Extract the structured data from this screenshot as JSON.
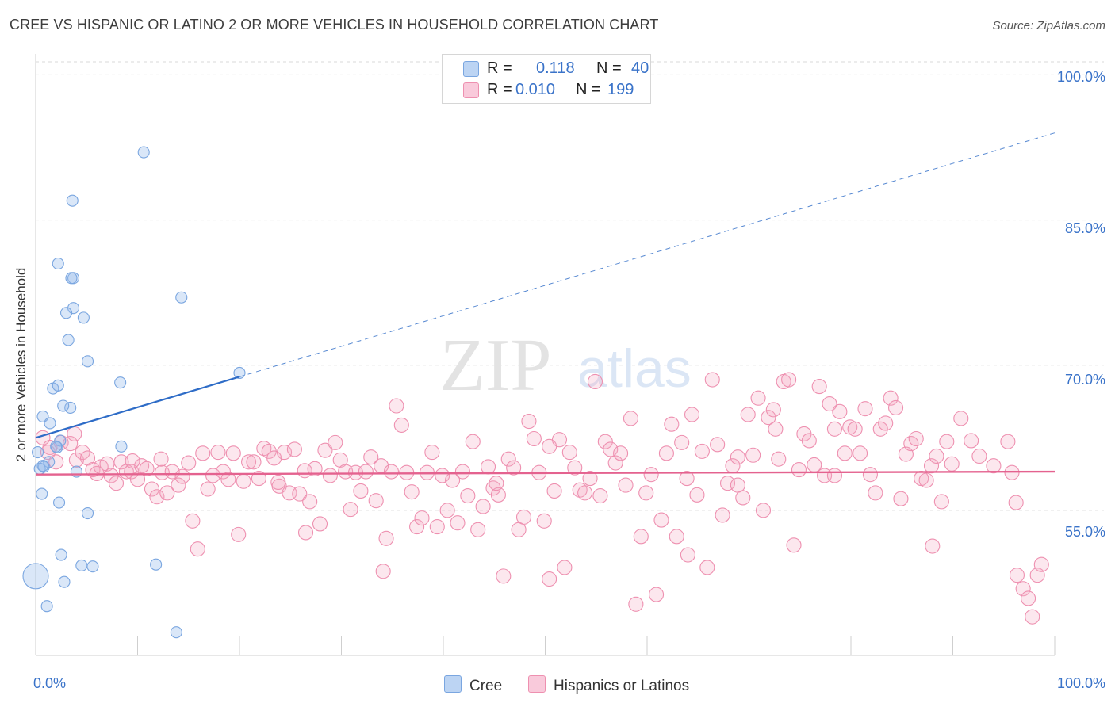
{
  "title": "CREE VS HISPANIC OR LATINO 2 OR MORE VEHICLES IN HOUSEHOLD CORRELATION CHART",
  "source": "Source: ZipAtlas.com",
  "watermark": {
    "zip": "ZIP",
    "atlas": "atlas"
  },
  "legend": {
    "series": [
      {
        "r_label": "R =",
        "r_value": "0.118",
        "n_label": "N =",
        "n_value": "40",
        "color": "#a9c8f0",
        "stroke": "#7aa6e0"
      },
      {
        "r_label": "R =",
        "r_value": "0.010",
        "n_label": "N =",
        "n_value": "199",
        "color": "#f7bcd0",
        "stroke": "#ee90b0"
      }
    ]
  },
  "bottom_legend": {
    "cree": "Cree",
    "hisp": "Hispanics or Latinos"
  },
  "colors": {
    "cree_fill": "rgba(150,185,235,0.35)",
    "cree_stroke": "#7aa6e0",
    "cree_line": "#2e6cc7",
    "hisp_fill": "rgba(245,170,195,0.28)",
    "hisp_stroke": "#ee90b0",
    "hisp_line": "#e4628f",
    "grid": "#d8d8d8",
    "tick_text": "#3a73c9"
  },
  "chart_data": {
    "type": "scatter",
    "title": "CREE VS HISPANIC OR LATINO 2 OR MORE VEHICLES IN HOUSEHOLD CORRELATION CHART",
    "xlabel": "",
    "ylabel": "2 or more Vehicles in Household",
    "xlim": [
      0,
      100
    ],
    "ylim": [
      40,
      102
    ],
    "x_tick_labels": [
      "0.0%",
      "100.0%"
    ],
    "y_ticks": [
      55,
      70,
      85,
      100
    ],
    "y_tick_labels": [
      "55.0%",
      "70.0%",
      "85.0%",
      "100.0%"
    ],
    "grid": true,
    "legend_position": "top-center",
    "series": [
      {
        "name": "Cree",
        "points": [
          [
            10.6,
            92.0
          ],
          [
            3.6,
            87.0
          ],
          [
            2.2,
            80.5
          ],
          [
            3.7,
            79.0
          ],
          [
            3.5,
            79.0
          ],
          [
            14.3,
            77.0
          ],
          [
            3.7,
            75.9
          ],
          [
            3.0,
            75.4
          ],
          [
            4.7,
            74.9
          ],
          [
            3.2,
            72.6
          ],
          [
            5.1,
            70.4
          ],
          [
            8.3,
            68.2
          ],
          [
            1.7,
            67.6
          ],
          [
            2.2,
            67.9
          ],
          [
            3.4,
            65.6
          ],
          [
            2.7,
            65.8
          ],
          [
            20.0,
            69.2
          ],
          [
            0.7,
            64.7
          ],
          [
            1.4,
            64.0
          ],
          [
            2.4,
            62.2
          ],
          [
            2.1,
            61.5
          ],
          [
            0.2,
            61.0
          ],
          [
            2.0,
            61.6
          ],
          [
            1.3,
            60.0
          ],
          [
            0.8,
            59.5
          ],
          [
            0.4,
            59.3
          ],
          [
            4.0,
            59.0
          ],
          [
            8.4,
            61.6
          ],
          [
            0.6,
            56.7
          ],
          [
            2.3,
            55.8
          ],
          [
            5.1,
            54.7
          ],
          [
            2.5,
            50.4
          ],
          [
            4.5,
            49.3
          ],
          [
            5.6,
            49.2
          ],
          [
            11.8,
            49.4
          ],
          [
            0.0,
            48.2
          ],
          [
            2.8,
            47.6
          ],
          [
            1.1,
            45.1
          ],
          [
            13.8,
            42.4
          ],
          [
            0.7,
            59.6
          ]
        ],
        "marker_size": [
          7,
          7,
          7,
          7,
          7,
          7,
          7,
          7,
          7,
          7,
          7,
          7,
          7,
          7,
          7,
          7,
          7,
          7,
          7,
          7,
          7,
          7,
          7,
          7,
          7,
          7,
          7,
          7,
          7,
          7,
          7,
          7,
          7,
          7,
          7,
          16,
          7,
          7,
          7,
          7
        ]
      },
      {
        "name": "Hispanics or Latinos",
        "points": [
          [
            0.7,
            62.5
          ],
          [
            1.4,
            61.5
          ],
          [
            2.5,
            62.0
          ],
          [
            3.4,
            61.9
          ],
          [
            4.0,
            60.2
          ],
          [
            4.6,
            61.0
          ],
          [
            5.1,
            60.4
          ],
          [
            5.6,
            59.2
          ],
          [
            6.0,
            58.8
          ],
          [
            6.4,
            59.5
          ],
          [
            7.0,
            59.8
          ],
          [
            7.4,
            58.6
          ],
          [
            7.9,
            57.8
          ],
          [
            8.4,
            60.0
          ],
          [
            8.9,
            59.0
          ],
          [
            9.4,
            59.0
          ],
          [
            10.0,
            58.2
          ],
          [
            10.4,
            59.6
          ],
          [
            10.9,
            59.3
          ],
          [
            11.4,
            57.2
          ],
          [
            11.9,
            56.4
          ],
          [
            12.4,
            58.9
          ],
          [
            12.9,
            56.8
          ],
          [
            13.4,
            59.0
          ],
          [
            14.0,
            57.6
          ],
          [
            14.4,
            58.5
          ],
          [
            15.0,
            59.9
          ],
          [
            15.4,
            53.9
          ],
          [
            15.9,
            51.0
          ],
          [
            16.4,
            60.9
          ],
          [
            16.9,
            57.2
          ],
          [
            17.4,
            58.6
          ],
          [
            17.9,
            61.0
          ],
          [
            18.4,
            59.0
          ],
          [
            18.9,
            58.2
          ],
          [
            19.4,
            60.9
          ],
          [
            19.9,
            52.5
          ],
          [
            20.4,
            58.0
          ],
          [
            20.9,
            60.0
          ],
          [
            21.4,
            60.0
          ],
          [
            21.9,
            58.3
          ],
          [
            22.4,
            61.4
          ],
          [
            22.9,
            61.1
          ],
          [
            23.4,
            60.4
          ],
          [
            23.9,
            57.5
          ],
          [
            24.4,
            61.0
          ],
          [
            24.9,
            56.8
          ],
          [
            25.4,
            61.3
          ],
          [
            25.9,
            56.7
          ],
          [
            26.4,
            59.1
          ],
          [
            26.9,
            55.9
          ],
          [
            27.4,
            59.3
          ],
          [
            27.9,
            53.6
          ],
          [
            28.4,
            61.2
          ],
          [
            28.9,
            58.6
          ],
          [
            29.4,
            62.0
          ],
          [
            29.9,
            60.2
          ],
          [
            30.4,
            59.0
          ],
          [
            30.9,
            55.1
          ],
          [
            31.4,
            58.9
          ],
          [
            31.9,
            57.0
          ],
          [
            32.4,
            59.0
          ],
          [
            32.9,
            60.5
          ],
          [
            33.4,
            56.0
          ],
          [
            33.9,
            59.6
          ],
          [
            34.4,
            52.1
          ],
          [
            34.9,
            59.0
          ],
          [
            35.4,
            65.8
          ],
          [
            35.9,
            63.8
          ],
          [
            36.4,
            58.9
          ],
          [
            36.9,
            56.9
          ],
          [
            37.4,
            53.3
          ],
          [
            37.9,
            54.2
          ],
          [
            38.4,
            58.9
          ],
          [
            38.9,
            61.0
          ],
          [
            39.4,
            53.3
          ],
          [
            39.9,
            58.6
          ],
          [
            40.4,
            55.0
          ],
          [
            40.9,
            58.1
          ],
          [
            41.4,
            53.7
          ],
          [
            41.9,
            59.0
          ],
          [
            42.4,
            56.5
          ],
          [
            42.9,
            62.1
          ],
          [
            43.4,
            53.0
          ],
          [
            43.9,
            55.4
          ],
          [
            44.4,
            59.5
          ],
          [
            44.9,
            57.3
          ],
          [
            45.4,
            56.6
          ],
          [
            45.9,
            48.2
          ],
          [
            46.4,
            60.3
          ],
          [
            46.9,
            59.4
          ],
          [
            47.4,
            53.0
          ],
          [
            47.9,
            54.3
          ],
          [
            48.4,
            64.2
          ],
          [
            48.9,
            62.4
          ],
          [
            49.4,
            58.9
          ],
          [
            49.9,
            53.9
          ],
          [
            50.4,
            61.6
          ],
          [
            50.9,
            57.0
          ],
          [
            51.4,
            62.3
          ],
          [
            51.9,
            49.1
          ],
          [
            52.4,
            61.0
          ],
          [
            52.9,
            59.4
          ],
          [
            53.4,
            57.1
          ],
          [
            53.9,
            56.8
          ],
          [
            54.4,
            58.3
          ],
          [
            54.9,
            68.3
          ],
          [
            55.4,
            56.5
          ],
          [
            55.9,
            62.1
          ],
          [
            56.4,
            61.3
          ],
          [
            56.9,
            59.9
          ],
          [
            57.4,
            60.9
          ],
          [
            57.9,
            57.6
          ],
          [
            58.4,
            64.5
          ],
          [
            58.9,
            45.3
          ],
          [
            59.4,
            52.3
          ],
          [
            59.9,
            56.8
          ],
          [
            60.4,
            58.7
          ],
          [
            60.9,
            46.3
          ],
          [
            61.4,
            54.0
          ],
          [
            61.9,
            60.9
          ],
          [
            62.4,
            63.9
          ],
          [
            62.9,
            52.3
          ],
          [
            63.4,
            62.0
          ],
          [
            63.9,
            58.3
          ],
          [
            64.4,
            64.9
          ],
          [
            64.9,
            56.6
          ],
          [
            65.4,
            61.1
          ],
          [
            65.9,
            49.1
          ],
          [
            66.4,
            68.5
          ],
          [
            66.9,
            61.8
          ],
          [
            67.4,
            54.5
          ],
          [
            67.9,
            57.8
          ],
          [
            68.4,
            59.6
          ],
          [
            68.9,
            57.6
          ],
          [
            69.4,
            56.3
          ],
          [
            69.9,
            64.9
          ],
          [
            70.4,
            60.7
          ],
          [
            70.9,
            66.6
          ],
          [
            71.4,
            55.0
          ],
          [
            71.9,
            64.6
          ],
          [
            72.4,
            65.4
          ],
          [
            72.9,
            60.3
          ],
          [
            73.4,
            68.3
          ],
          [
            73.9,
            68.5
          ],
          [
            74.4,
            51.4
          ],
          [
            74.9,
            59.2
          ],
          [
            75.4,
            62.9
          ],
          [
            75.9,
            62.2
          ],
          [
            76.4,
            59.7
          ],
          [
            76.9,
            67.8
          ],
          [
            77.4,
            58.6
          ],
          [
            77.9,
            66.0
          ],
          [
            78.4,
            63.4
          ],
          [
            78.9,
            65.2
          ],
          [
            79.4,
            60.9
          ],
          [
            79.9,
            63.6
          ],
          [
            80.4,
            63.4
          ],
          [
            80.9,
            60.9
          ],
          [
            81.4,
            65.5
          ],
          [
            81.9,
            58.7
          ],
          [
            82.4,
            56.8
          ],
          [
            82.9,
            63.4
          ],
          [
            83.4,
            64.0
          ],
          [
            83.9,
            66.6
          ],
          [
            84.4,
            65.6
          ],
          [
            84.9,
            56.2
          ],
          [
            85.4,
            60.8
          ],
          [
            85.9,
            61.9
          ],
          [
            86.4,
            62.4
          ],
          [
            86.9,
            58.3
          ],
          [
            87.4,
            58.1
          ],
          [
            87.9,
            59.6
          ],
          [
            88.4,
            60.6
          ],
          [
            88.9,
            55.9
          ],
          [
            89.4,
            62.1
          ],
          [
            89.9,
            59.8
          ],
          [
            50.4,
            47.9
          ],
          [
            88.0,
            51.3
          ],
          [
            64.0,
            50.4
          ],
          [
            96.3,
            48.3
          ],
          [
            96.9,
            46.9
          ],
          [
            97.4,
            45.9
          ],
          [
            97.8,
            44.0
          ],
          [
            98.3,
            48.3
          ],
          [
            98.7,
            49.4
          ],
          [
            95.8,
            58.9
          ],
          [
            96.2,
            55.8
          ],
          [
            95.4,
            62.1
          ],
          [
            94.0,
            59.6
          ],
          [
            92.6,
            60.6
          ],
          [
            91.8,
            62.2
          ],
          [
            90.8,
            64.5
          ],
          [
            72.6,
            63.4
          ],
          [
            23.8,
            57.9
          ],
          [
            9.5,
            60.1
          ],
          [
            12.3,
            60.3
          ],
          [
            3.8,
            62.9
          ],
          [
            1.2,
            61.0
          ],
          [
            2.0,
            60.0
          ],
          [
            26.5,
            52.7
          ],
          [
            34.1,
            48.7
          ],
          [
            45.2,
            57.8
          ],
          [
            68.9,
            60.5
          ],
          [
            78.4,
            58.6
          ]
        ],
        "marker_size": 9
      }
    ],
    "trend_lines": [
      {
        "series": "Cree",
        "from": [
          0.0,
          62.5
        ],
        "to": [
          20.0,
          68.8
        ],
        "extend_dashed_to": [
          100.0,
          94.0
        ]
      },
      {
        "series": "Hispanics or Latinos",
        "from": [
          0.0,
          58.7
        ],
        "to": [
          100.0,
          59.0
        ]
      }
    ]
  }
}
